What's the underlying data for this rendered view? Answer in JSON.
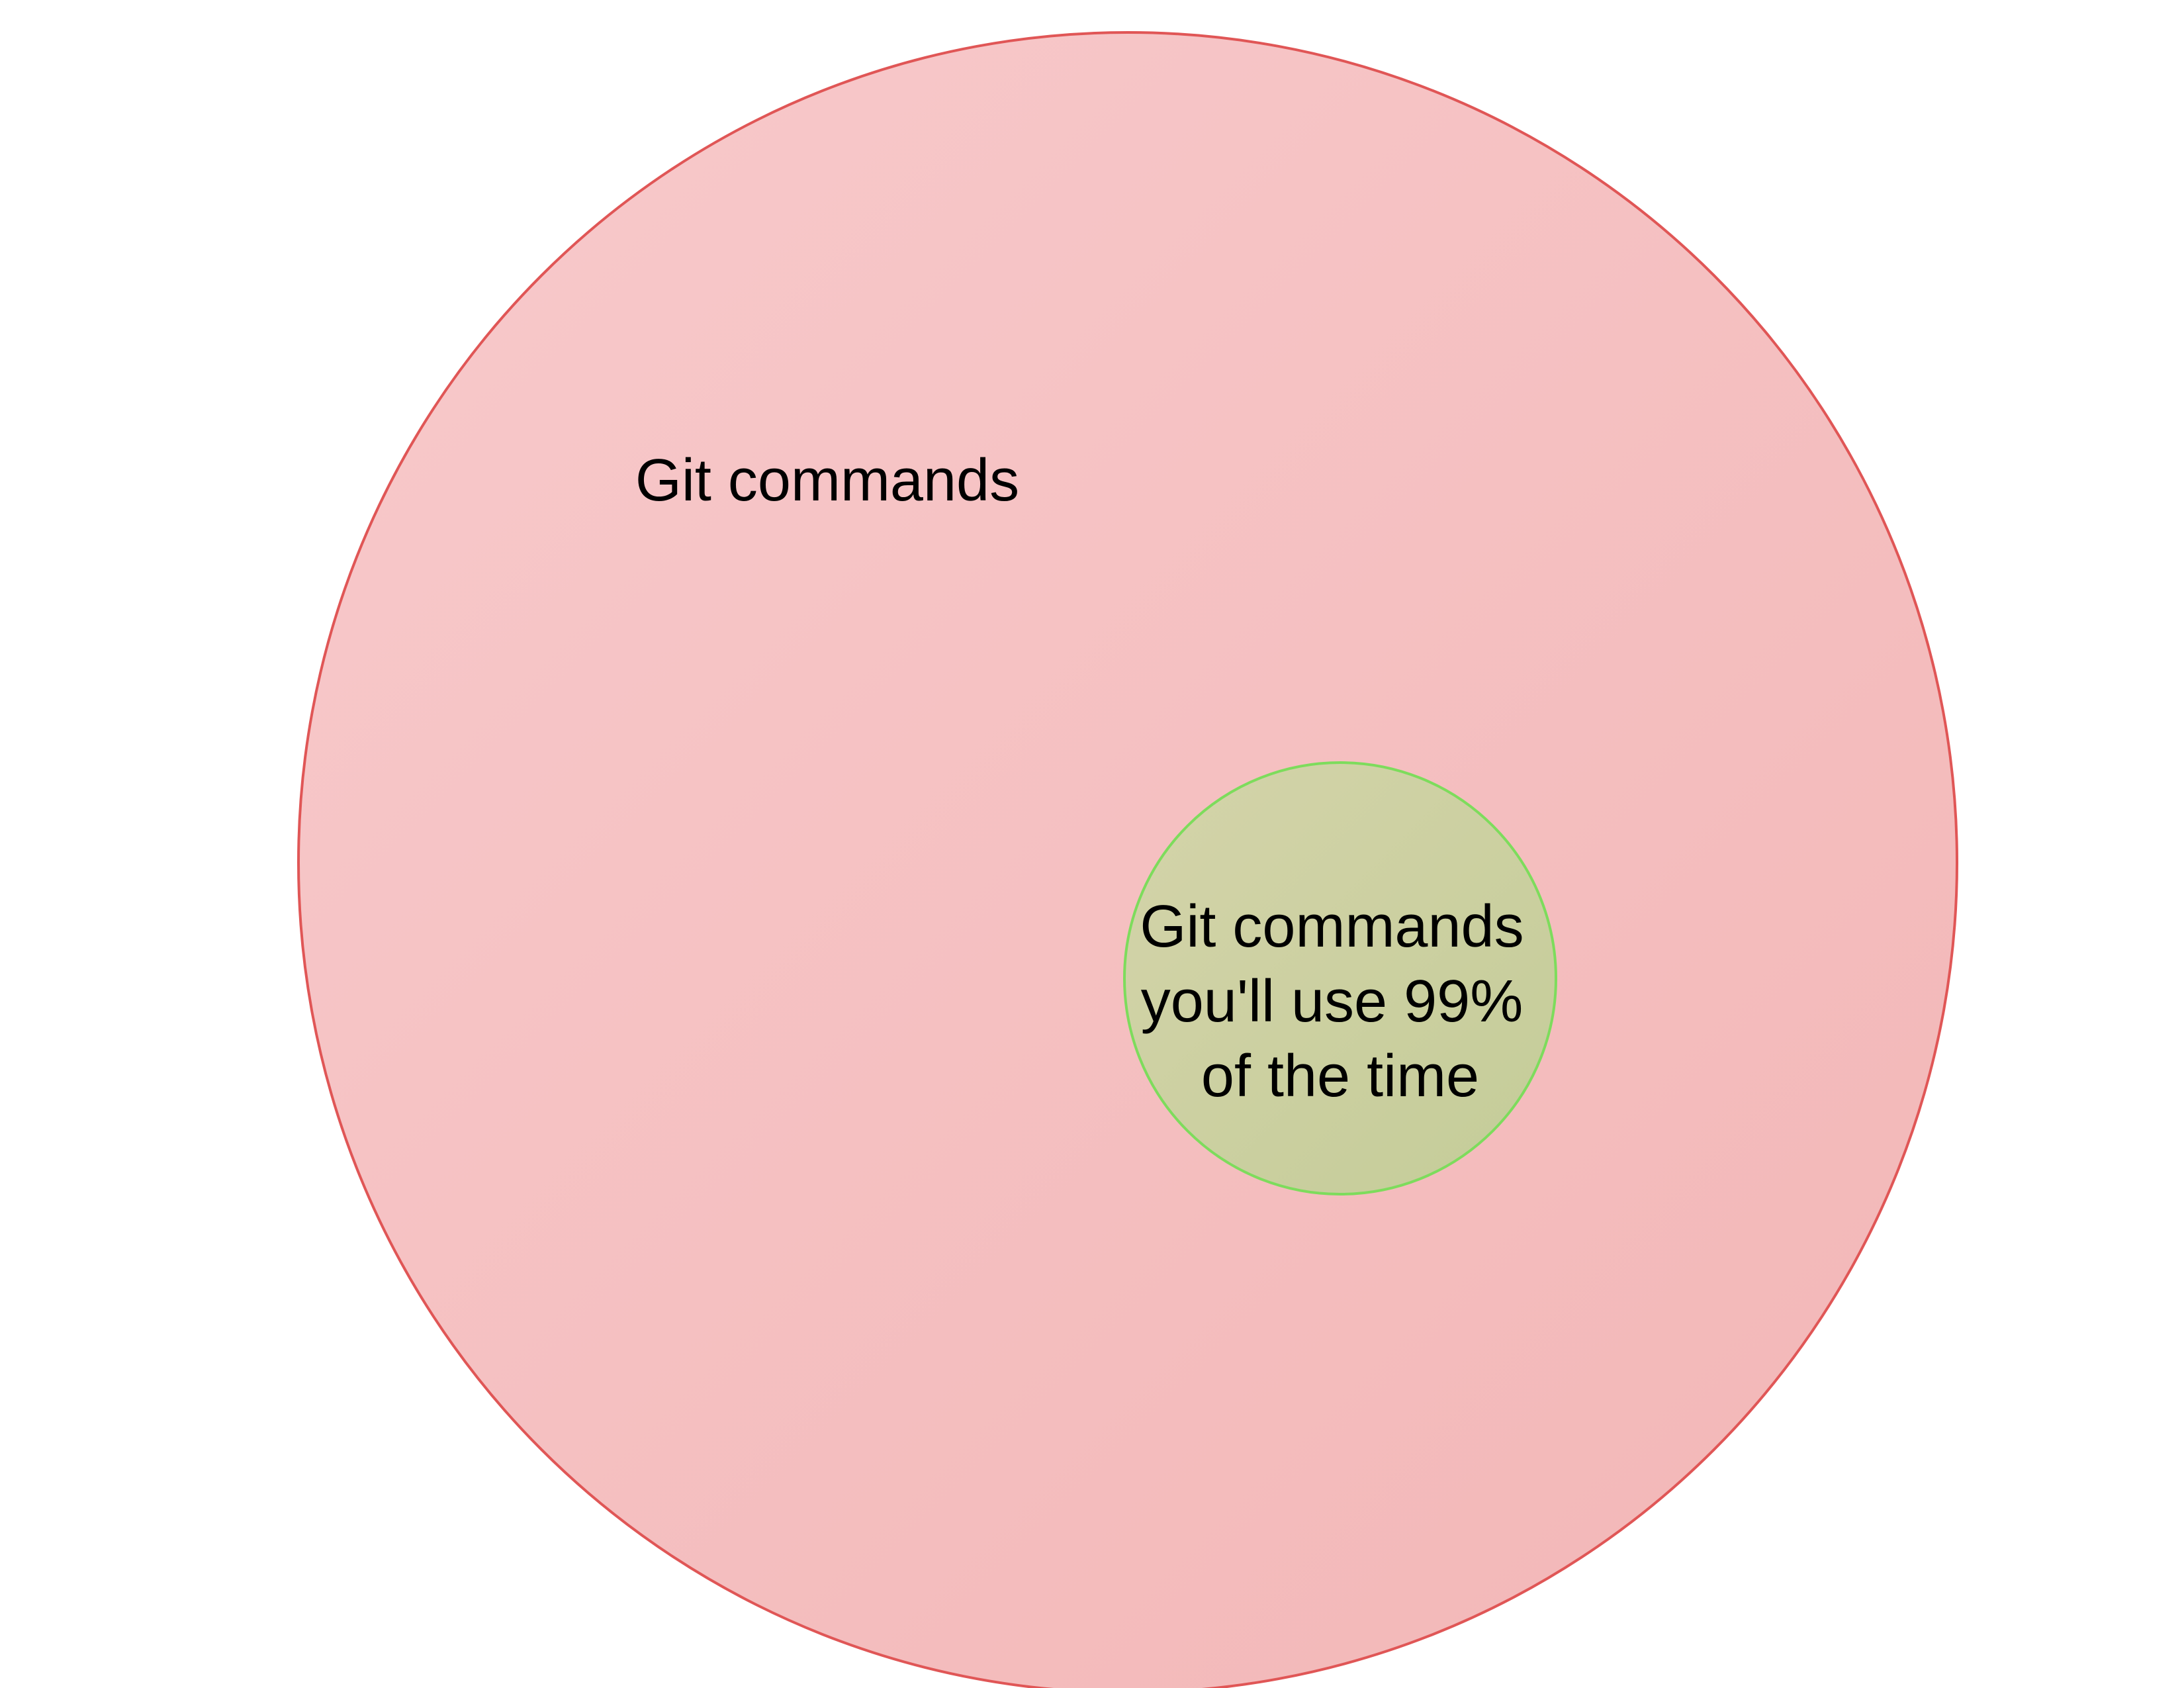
{
  "diagram": {
    "outer": {
      "label": "Git commands",
      "fill_start": "#f8cacc",
      "fill_end": "#f2b6b6",
      "stroke": "#e05656"
    },
    "inner": {
      "label_lines": [
        "Git commands",
        "you'll use 99%",
        "of the time"
      ],
      "fill_start": "#d4d4aa",
      "fill_end": "#c4cc98",
      "stroke": "#7ddc5c"
    }
  }
}
